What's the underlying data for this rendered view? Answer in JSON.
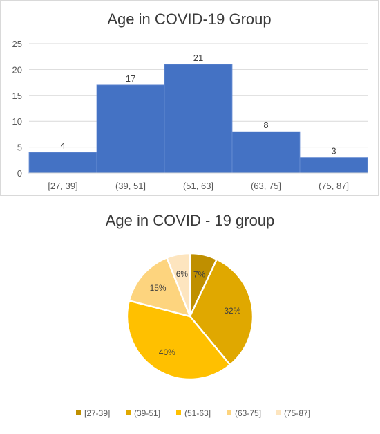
{
  "chart_data": [
    {
      "type": "bar",
      "title": "Age in COVID-19 Group",
      "xlabel": "",
      "ylabel": "",
      "categories": [
        "[27, 39]",
        "(39, 51]",
        "(51, 63]",
        "(63, 75]",
        "(75, 87]"
      ],
      "values": [
        4,
        17,
        21,
        8,
        3
      ],
      "ylim": [
        0,
        25
      ],
      "yticks": [
        0,
        5,
        10,
        15,
        20,
        25
      ],
      "grid": true,
      "bar_color": "#4472c4"
    },
    {
      "type": "pie",
      "title": "Age in COVID - 19 group",
      "labels": [
        "[27-39]",
        "(39-51]",
        "(51-63]",
        "(63-75]",
        "(75-87]"
      ],
      "values": [
        7,
        32,
        40,
        15,
        6
      ],
      "value_labels": [
        "7%",
        "32%",
        "40%",
        "15%",
        "6%"
      ],
      "colors": [
        "#bf8f00",
        "#e0a800",
        "#ffc000",
        "#fdd47e",
        "#fde5bf"
      ],
      "legend_position": "bottom"
    }
  ]
}
